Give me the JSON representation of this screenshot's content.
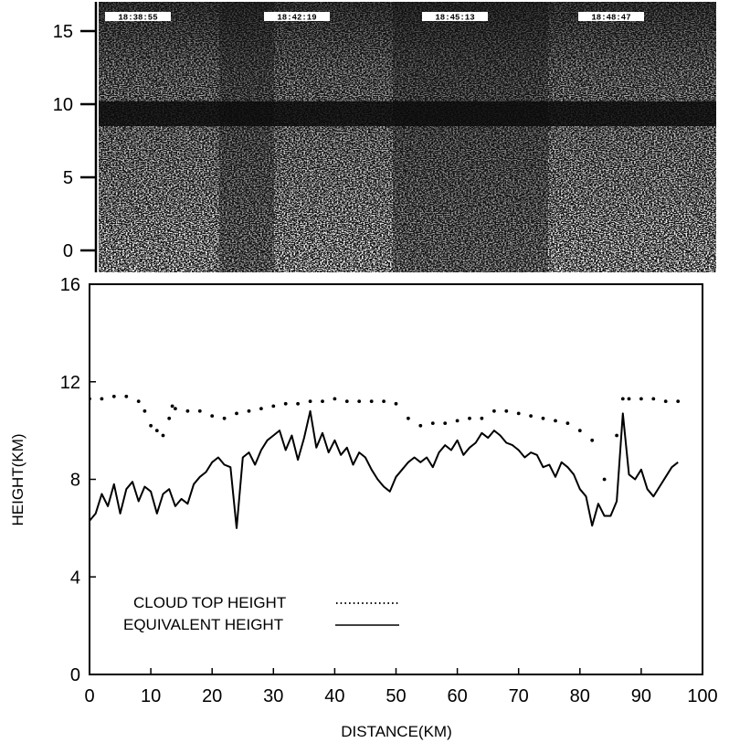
{
  "chart_data": [
    {
      "type": "heatmap",
      "description_role": "lidar-backscatter-image",
      "y_ticks": [
        "15",
        "10",
        "5",
        "0"
      ],
      "ylim": [
        -1.5,
        17
      ],
      "time_stamps": [
        "18:38:55",
        "18:42:19",
        "18:45:13",
        "18:48:47"
      ],
      "cloud_band_km": [
        8.5,
        10.2
      ],
      "colors": {
        "background": "#101010",
        "speckle": "#ffffff"
      }
    },
    {
      "type": "line",
      "xlabel": "DISTANCE(KM)",
      "ylabel": "HEIGHT(KM)",
      "xlim": [
        0,
        100
      ],
      "ylim": [
        0,
        16
      ],
      "x_ticks": [
        "0",
        "10",
        "20",
        "30",
        "40",
        "50",
        "60",
        "70",
        "80",
        "90",
        "100"
      ],
      "y_ticks": [
        "0",
        "4",
        "8",
        "12",
        "16"
      ],
      "legend": {
        "entries": [
          "CLOUD TOP HEIGHT",
          "EQUIVALENT HEIGHT"
        ],
        "position": "lower-left"
      },
      "series": [
        {
          "name": "CLOUD TOP HEIGHT",
          "style": "dotted",
          "x": [
            0,
            2,
            4,
            6,
            8,
            9,
            10,
            11,
            12,
            13,
            13.5,
            14,
            16,
            18,
            20,
            22,
            24,
            26,
            28,
            30,
            32,
            34,
            36,
            38,
            40,
            42,
            44,
            46,
            48,
            50,
            52,
            54,
            56,
            58,
            60,
            62,
            64,
            66,
            68,
            70,
            72,
            74,
            76,
            78,
            80,
            82,
            84,
            86,
            87,
            88,
            90,
            92,
            94,
            96
          ],
          "values": [
            11.3,
            11.3,
            11.4,
            11.4,
            11.2,
            10.8,
            10.2,
            10.0,
            9.8,
            10.5,
            11.0,
            10.9,
            10.8,
            10.8,
            10.6,
            10.5,
            10.7,
            10.8,
            10.9,
            11.0,
            11.1,
            11.1,
            11.2,
            11.2,
            11.3,
            11.2,
            11.2,
            11.2,
            11.2,
            11.1,
            10.5,
            10.2,
            10.3,
            10.3,
            10.4,
            10.5,
            10.5,
            10.8,
            10.8,
            10.7,
            10.6,
            10.5,
            10.4,
            10.3,
            10.0,
            9.6,
            8.0,
            9.8,
            11.3,
            11.3,
            11.3,
            11.3,
            11.2,
            11.2
          ]
        },
        {
          "name": "EQUIVALENT HEIGHT",
          "style": "solid",
          "x": [
            0,
            1,
            2,
            3,
            4,
            5,
            6,
            7,
            8,
            9,
            10,
            11,
            12,
            13,
            14,
            15,
            16,
            17,
            18,
            19,
            20,
            21,
            22,
            23,
            24,
            25,
            26,
            27,
            28,
            29,
            30,
            31,
            32,
            33,
            34,
            35,
            36,
            37,
            38,
            39,
            40,
            41,
            42,
            43,
            44,
            45,
            46,
            47,
            48,
            49,
            50,
            51,
            52,
            53,
            54,
            55,
            56,
            57,
            58,
            59,
            60,
            61,
            62,
            63,
            64,
            65,
            66,
            67,
            68,
            69,
            70,
            71,
            72,
            73,
            74,
            75,
            76,
            77,
            78,
            79,
            80,
            81,
            82,
            83,
            84,
            85,
            86,
            87,
            88,
            89,
            90,
            91,
            92,
            93,
            94,
            95,
            96
          ],
          "values": [
            6.3,
            6.6,
            7.4,
            6.9,
            7.8,
            6.6,
            7.6,
            7.9,
            7.1,
            7.7,
            7.5,
            6.6,
            7.4,
            7.6,
            6.9,
            7.2,
            7.0,
            7.8,
            8.1,
            8.3,
            8.7,
            8.9,
            8.6,
            8.5,
            6.0,
            8.9,
            9.1,
            8.6,
            9.2,
            9.6,
            9.8,
            10.0,
            9.2,
            9.8,
            8.8,
            9.7,
            10.8,
            9.3,
            9.9,
            9.1,
            9.6,
            9.0,
            9.3,
            8.6,
            9.1,
            8.9,
            8.4,
            8.0,
            7.7,
            7.5,
            8.1,
            8.4,
            8.7,
            8.9,
            8.7,
            8.9,
            8.5,
            9.1,
            9.4,
            9.2,
            9.6,
            9.0,
            9.3,
            9.5,
            9.9,
            9.7,
            10.0,
            9.8,
            9.5,
            9.4,
            9.2,
            8.9,
            9.1,
            9.0,
            8.5,
            8.6,
            8.1,
            8.7,
            8.5,
            8.2,
            7.6,
            7.3,
            6.1,
            7.0,
            6.5,
            6.5,
            7.1,
            10.7,
            8.2,
            8.0,
            8.4,
            7.6,
            7.3,
            7.7,
            8.1,
            8.5,
            8.7
          ]
        }
      ]
    }
  ]
}
